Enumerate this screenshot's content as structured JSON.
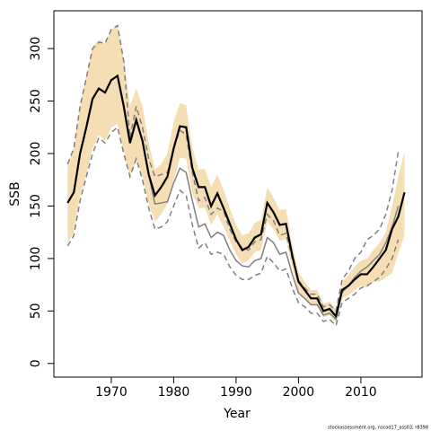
{
  "chart_data": {
    "type": "line",
    "xlabel": "Year",
    "ylabel": "SSB",
    "footnote": "stockassessment.org, nscod17_ass03, r8398",
    "x": [
      1963,
      1964,
      1965,
      1966,
      1967,
      1968,
      1969,
      1970,
      1971,
      1972,
      1973,
      1974,
      1975,
      1976,
      1977,
      1978,
      1979,
      1980,
      1981,
      1982,
      1983,
      1984,
      1985,
      1986,
      1987,
      1988,
      1989,
      1990,
      1991,
      1992,
      1993,
      1994,
      1995,
      1996,
      1997,
      1998,
      1999,
      2000,
      2001,
      2002,
      2003,
      2004,
      2005,
      2006,
      2007,
      2008,
      2009,
      2010,
      2011,
      2012,
      2013,
      2014,
      2015,
      2016,
      2017
    ],
    "band": {
      "color": "#f5deb3",
      "upper": [
        190,
        205,
        245,
        275,
        302,
        308,
        305,
        318,
        322,
        290,
        245,
        262,
        245,
        210,
        185,
        190,
        200,
        230,
        248,
        246,
        205,
        185,
        185,
        168,
        180,
        165,
        148,
        132,
        122,
        124,
        134,
        137,
        168,
        158,
        146,
        147,
        114,
        87,
        78,
        70,
        70,
        57,
        59,
        52,
        78,
        84,
        92,
        98,
        100,
        108,
        115,
        125,
        150,
        178,
        202
      ],
      "lower": [
        115,
        125,
        160,
        180,
        205,
        218,
        212,
        225,
        228,
        202,
        178,
        195,
        178,
        152,
        135,
        142,
        152,
        175,
        196,
        195,
        162,
        148,
        148,
        132,
        142,
        130,
        117,
        104,
        95,
        98,
        106,
        108,
        135,
        128,
        117,
        118,
        91,
        68,
        62,
        55,
        55,
        44,
        46,
        39,
        62,
        65,
        70,
        74,
        72,
        78,
        78,
        82,
        86,
        105,
        122
      ]
    },
    "series": [
      {
        "color": "#808080",
        "dashed": true,
        "width": 1.5,
        "values": [
          190,
          205,
          245,
          272,
          300,
          306,
          305,
          318,
          322,
          288,
          215,
          245,
          225,
          195,
          178,
          180,
          182,
          205,
          222,
          218,
          182,
          155,
          158,
          142,
          148,
          145,
          128,
          116,
          110,
          108,
          116,
          118,
          142,
          136,
          122,
          124,
          100,
          79,
          72,
          66,
          66,
          54,
          56,
          50,
          80,
          88,
          100,
          106,
          118,
          122,
          128,
          142,
          165,
          202,
          null
        ]
      },
      {
        "color": "#808080",
        "dashed": true,
        "width": 1.5,
        "values": [
          112,
          122,
          155,
          178,
          200,
          215,
          210,
          220,
          225,
          200,
          178,
          195,
          175,
          148,
          128,
          130,
          135,
          150,
          165,
          160,
          132,
          110,
          115,
          104,
          106,
          104,
          92,
          84,
          80,
          80,
          84,
          86,
          102,
          96,
          88,
          90,
          72,
          58,
          54,
          48,
          48,
          40,
          42,
          36,
          58,
          62,
          66,
          72,
          74,
          78,
          82,
          90,
          100,
          118,
          null
        ]
      },
      {
        "color": "#808080",
        "dashed": false,
        "width": 1.5,
        "values": [
          153,
          163,
          200,
          225,
          252,
          262,
          258,
          270,
          274,
          245,
          210,
          232,
          212,
          180,
          152,
          153,
          154,
          172,
          186,
          182,
          155,
          130,
          133,
          120,
          125,
          122,
          108,
          98,
          93,
          92,
          98,
          100,
          120,
          115,
          104,
          106,
          85,
          67,
          62,
          56,
          56,
          46,
          48,
          42,
          68,
          74,
          82,
          88,
          92,
          98,
          104,
          115,
          130,
          150,
          null
        ]
      },
      {
        "color": "#000000",
        "dashed": false,
        "width": 2.2,
        "values": [
          153,
          163,
          200,
          225,
          252,
          262,
          258,
          270,
          274,
          245,
          210,
          232,
          212,
          180,
          160,
          168,
          178,
          205,
          226,
          225,
          186,
          168,
          168,
          150,
          162,
          148,
          133,
          118,
          108,
          111,
          120,
          123,
          153,
          144,
          132,
          133,
          103,
          78,
          70,
          62,
          62,
          50,
          52,
          45,
          70,
          74,
          80,
          85,
          85,
          92,
          100,
          108,
          128,
          140,
          163
        ]
      }
    ],
    "xlim": [
      1960.8,
      2019.8
    ],
    "ylim": [
      -13,
      336
    ],
    "xticks": [
      1970,
      1980,
      1990,
      2000,
      2010
    ],
    "yticks": [
      0,
      50,
      100,
      150,
      200,
      250,
      300
    ]
  }
}
